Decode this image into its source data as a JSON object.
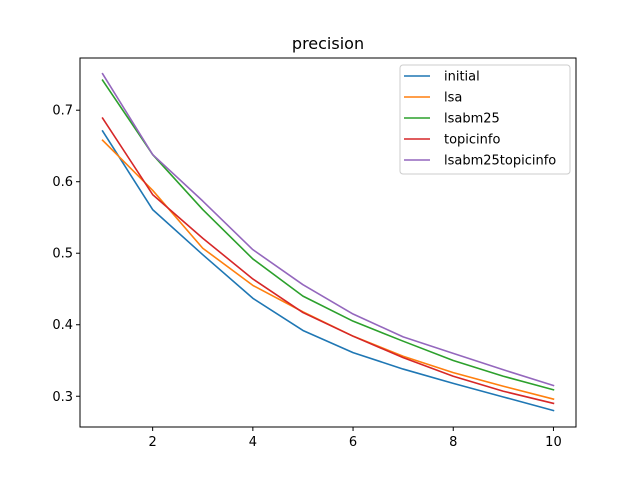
{
  "chart_data": {
    "type": "line",
    "title": "precision",
    "xlabel": "",
    "ylabel": "",
    "xlim": [
      0.55,
      10.45
    ],
    "ylim": [
      0.257,
      0.773
    ],
    "xticks": [
      2,
      4,
      6,
      8,
      10
    ],
    "yticks": [
      0.3,
      0.4,
      0.5,
      0.6,
      0.7
    ],
    "ytick_labels": [
      "0.3",
      "0.4",
      "0.5",
      "0.6",
      "0.7"
    ],
    "grid": false,
    "legend_position": "top-right",
    "x": [
      1,
      2,
      3,
      4,
      5,
      6,
      7,
      8,
      9,
      10
    ],
    "series": [
      {
        "name": "initial",
        "color": "#1f77b4",
        "values": [
          0.671,
          0.561,
          0.498,
          0.437,
          0.392,
          0.361,
          0.338,
          0.318,
          0.299,
          0.28
        ]
      },
      {
        "name": "lsa",
        "color": "#ff7f0e",
        "values": [
          0.658,
          0.588,
          0.507,
          0.455,
          0.418,
          0.384,
          0.356,
          0.333,
          0.314,
          0.296
        ]
      },
      {
        "name": "lsabm25",
        "color": "#2ca02c",
        "values": [
          0.742,
          0.638,
          0.561,
          0.492,
          0.44,
          0.405,
          0.377,
          0.35,
          0.328,
          0.309
        ]
      },
      {
        "name": "topicinfo",
        "color": "#d62728",
        "values": [
          0.689,
          0.582,
          0.521,
          0.464,
          0.417,
          0.384,
          0.354,
          0.328,
          0.307,
          0.29
        ]
      },
      {
        "name": "lsabm25topicinfo",
        "color": "#9467bd",
        "values": [
          0.751,
          0.638,
          0.573,
          0.505,
          0.456,
          0.415,
          0.383,
          0.36,
          0.337,
          0.315
        ]
      }
    ]
  }
}
